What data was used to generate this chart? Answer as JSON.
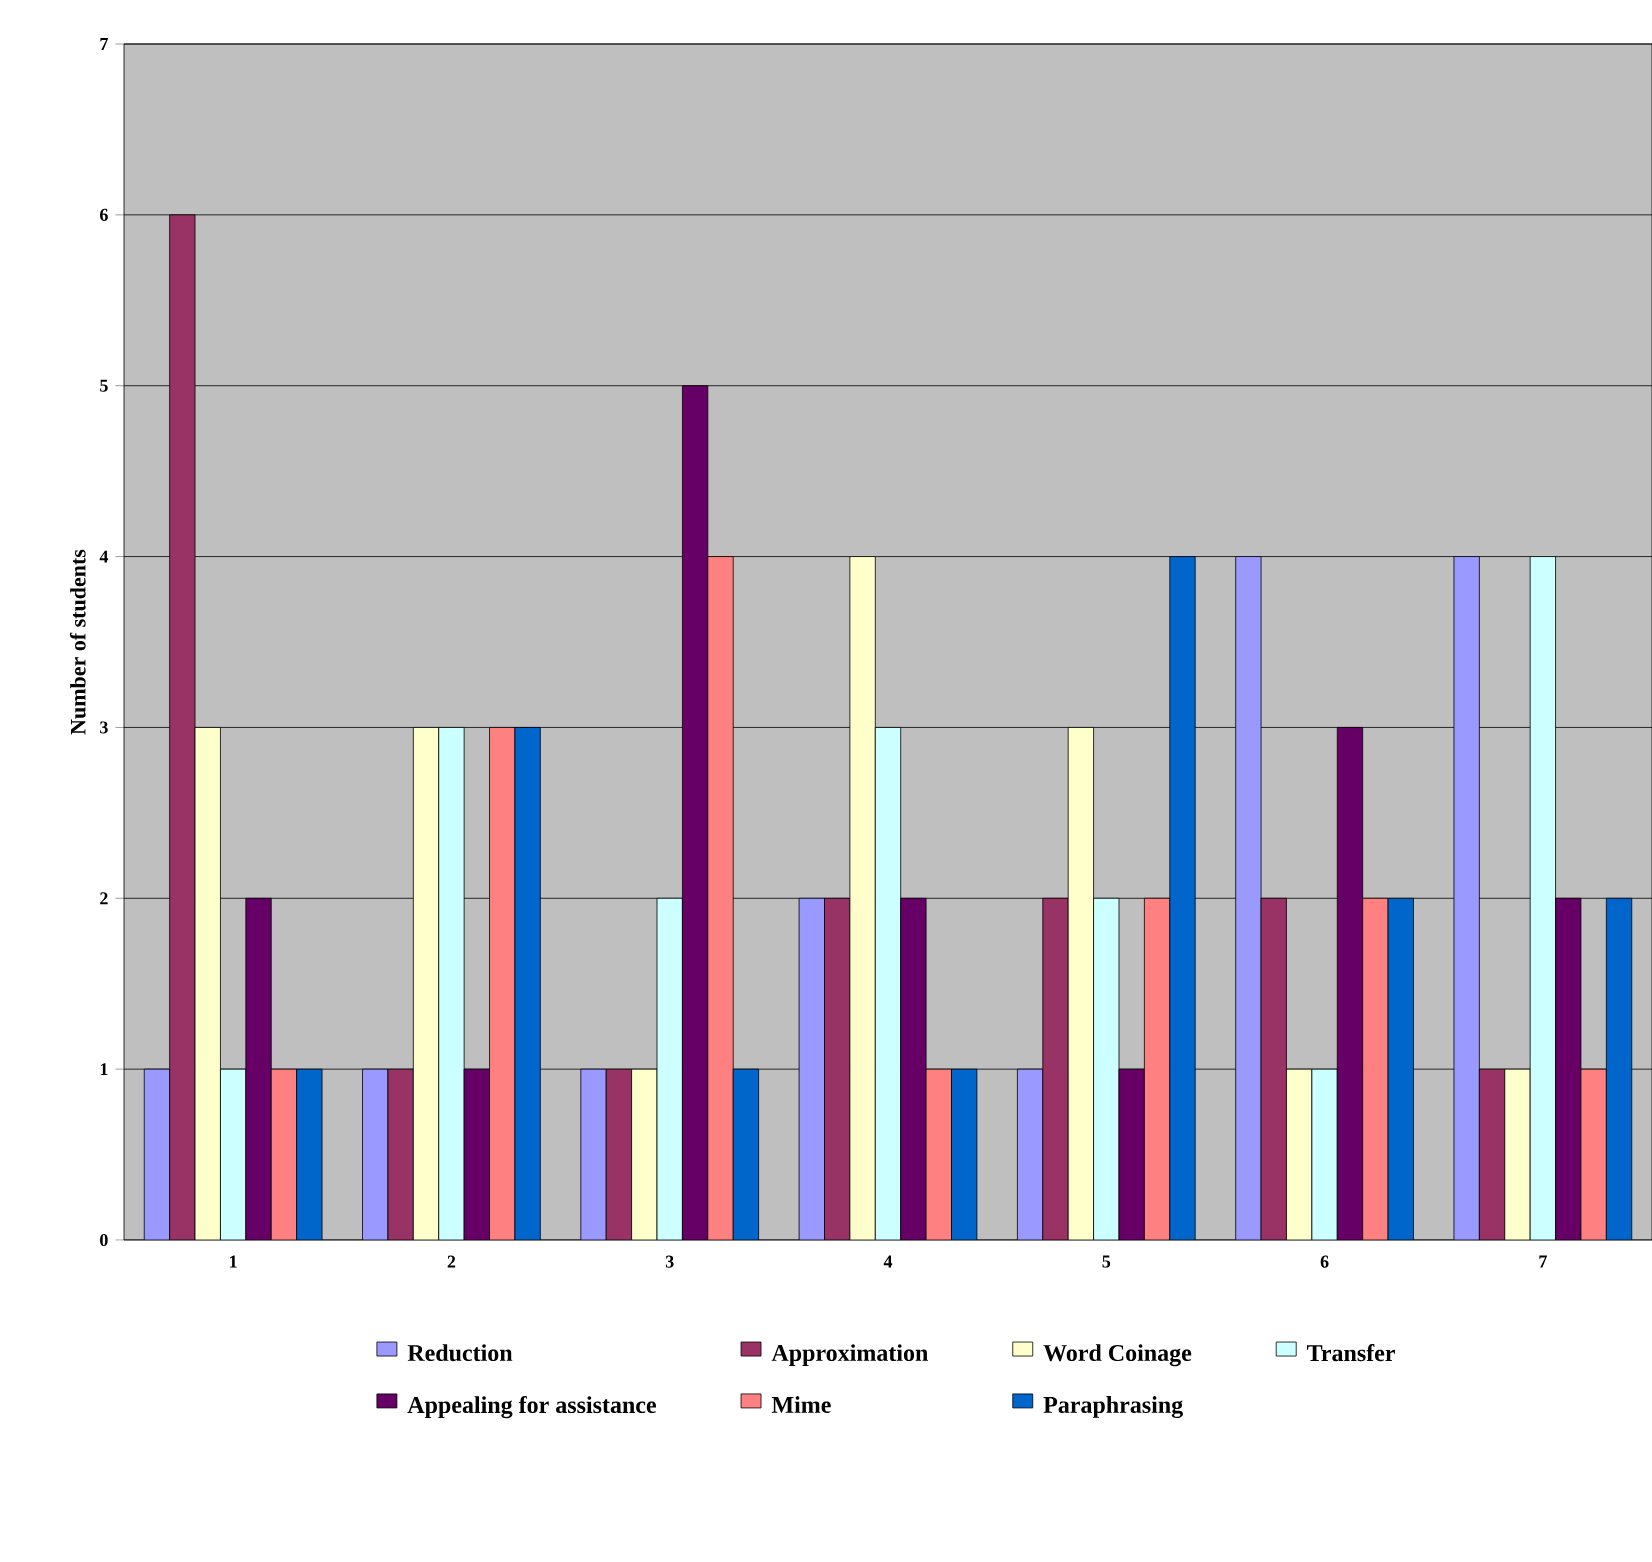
{
  "chart_data": {
    "type": "bar",
    "ylabel": "Number of students",
    "categories": [
      "1",
      "2",
      "3",
      "4",
      "5",
      "6",
      "7"
    ],
    "series": [
      {
        "name": "Reduction",
        "color": "#9999ff",
        "values": [
          1,
          1,
          1,
          2,
          1,
          4,
          4
        ]
      },
      {
        "name": "Approximation",
        "color": "#993366",
        "values": [
          6,
          1,
          1,
          2,
          2,
          2,
          1
        ]
      },
      {
        "name": "Word Coinage",
        "color": "#ffffcc",
        "values": [
          3,
          3,
          1,
          4,
          3,
          1,
          1
        ]
      },
      {
        "name": "Transfer",
        "color": "#ccffff",
        "values": [
          1,
          3,
          2,
          3,
          2,
          1,
          4
        ]
      },
      {
        "name": "Appealing for assistance",
        "color": "#660066",
        "values": [
          2,
          1,
          5,
          2,
          1,
          3,
          2
        ]
      },
      {
        "name": "Mime",
        "color": "#ff8080",
        "values": [
          1,
          3,
          4,
          1,
          2,
          2,
          1
        ]
      },
      {
        "name": "Paraphrasing",
        "color": "#0066cc",
        "values": [
          1,
          3,
          1,
          1,
          4,
          2,
          2
        ]
      }
    ],
    "ylim": [
      0,
      7
    ],
    "yticks": [
      0,
      1,
      2,
      3,
      4,
      5,
      6,
      7
    ],
    "grid": "y",
    "legend": "bottom"
  }
}
